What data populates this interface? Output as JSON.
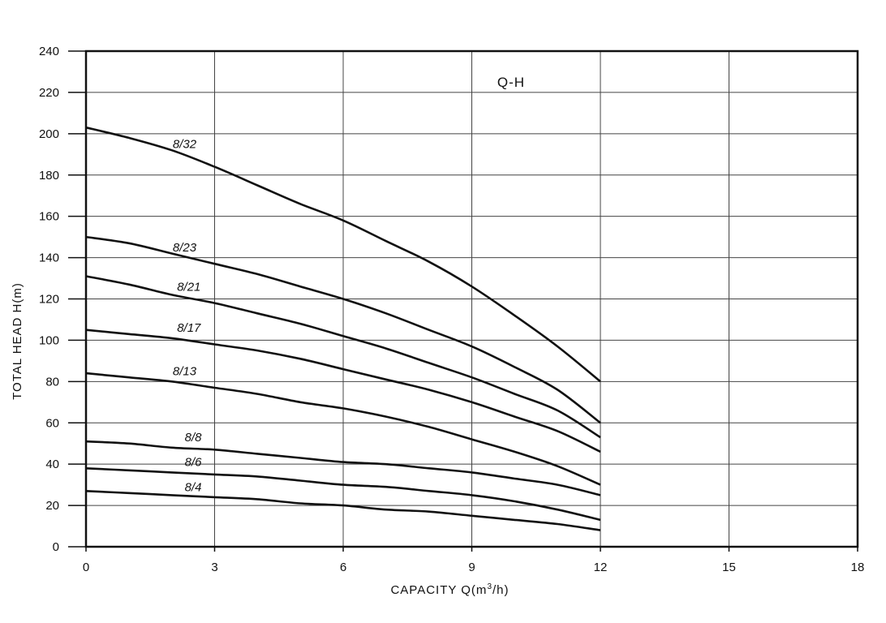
{
  "chart_data": {
    "type": "line",
    "title": "Q-H",
    "xlabel": "CAPACITY  Q(m",
    "xlabel_sup": "3",
    "xlabel_tail": "/h)",
    "ylabel": "TOTAL HEAD  H(m)",
    "xlim": [
      0,
      18
    ],
    "ylim": [
      0,
      240
    ],
    "x_ticks": [
      "0",
      "3",
      "6",
      "9",
      "12",
      "15",
      "18"
    ],
    "y_ticks": [
      "0",
      "20",
      "40",
      "60",
      "80",
      "100",
      "120",
      "140",
      "160",
      "180",
      "200",
      "220",
      "240"
    ],
    "grid": true,
    "x": [
      0,
      1,
      2,
      3,
      4,
      5,
      6,
      7,
      8,
      9,
      10,
      11,
      12
    ],
    "series": [
      {
        "name": "8/32",
        "values": [
          203,
          198,
          192,
          184,
          175,
          166,
          158,
          148,
          138,
          126,
          112,
          97,
          80
        ],
        "label_x": 2.3,
        "label_y": 193
      },
      {
        "name": "8/23",
        "values": [
          150,
          147,
          142,
          137,
          132,
          126,
          120,
          113,
          105,
          97,
          87,
          76,
          60
        ],
        "label_x": 2.3,
        "label_y": 143
      },
      {
        "name": "8/21",
        "values": [
          131,
          127,
          122,
          118,
          113,
          108,
          102,
          96,
          89,
          82,
          74,
          66,
          53
        ],
        "label_x": 2.4,
        "label_y": 124
      },
      {
        "name": "8/17",
        "values": [
          105,
          103,
          101,
          98,
          95,
          91,
          86,
          81,
          76,
          70,
          63,
          56,
          46
        ],
        "label_x": 2.4,
        "label_y": 104
      },
      {
        "name": "8/13",
        "values": [
          84,
          82,
          80,
          77,
          74,
          70,
          67,
          63,
          58,
          52,
          46,
          39,
          30
        ],
        "label_x": 2.3,
        "label_y": 83
      },
      {
        "name": "8/8",
        "values": [
          51,
          50,
          48,
          47,
          45,
          43,
          41,
          40,
          38,
          36,
          33,
          30,
          25
        ],
        "label_x": 2.5,
        "label_y": 51
      },
      {
        "name": "8/6",
        "values": [
          38,
          37,
          36,
          35,
          34,
          32,
          30,
          29,
          27,
          25,
          22,
          18,
          13
        ],
        "label_x": 2.5,
        "label_y": 39
      },
      {
        "name": "8/4",
        "values": [
          27,
          26,
          25,
          24,
          23,
          21,
          20,
          18,
          17,
          15,
          13,
          11,
          8
        ],
        "label_x": 2.5,
        "label_y": 27
      }
    ]
  }
}
